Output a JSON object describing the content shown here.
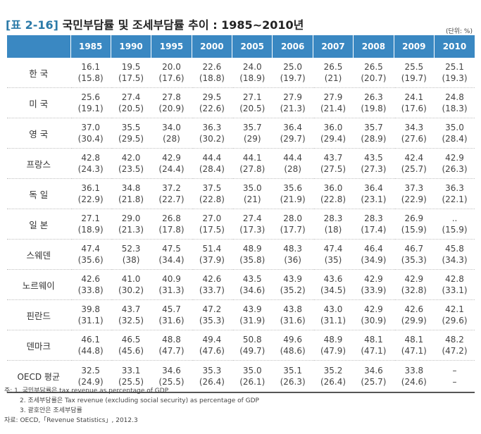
{
  "title": {
    "number": "[표 2-16]",
    "text": "국민부담률 및 조세부담률 추이 : 1985~2010년"
  },
  "unit": "(단위: %)",
  "table": {
    "headers": [
      "",
      "1985",
      "1990",
      "1995",
      "2000",
      "2005",
      "2006",
      "2007",
      "2008",
      "2009",
      "2010"
    ],
    "rows": [
      {
        "country": "한 국",
        "values": [
          [
            "16.1",
            "(15.8)"
          ],
          [
            "19.5",
            "(17.5)"
          ],
          [
            "20.0",
            "(17.6)"
          ],
          [
            "22.6",
            "(18.8)"
          ],
          [
            "24.0",
            "(18.9)"
          ],
          [
            "25.0",
            "(19.7)"
          ],
          [
            "26.5",
            "(21)"
          ],
          [
            "26.5",
            "(20.7)"
          ],
          [
            "25.5",
            "(19.7)"
          ],
          [
            "25.1",
            "(19.3)"
          ]
        ]
      },
      {
        "country": "미 국",
        "values": [
          [
            "25.6",
            "(19.1)"
          ],
          [
            "27.4",
            "(20.5)"
          ],
          [
            "27.8",
            "(20.9)"
          ],
          [
            "29.5",
            "(22.6)"
          ],
          [
            "27.1",
            "(20.5)"
          ],
          [
            "27.9",
            "(21.3)"
          ],
          [
            "27.9",
            "(21.4)"
          ],
          [
            "26.3",
            "(19.8)"
          ],
          [
            "24.1",
            "(17.6)"
          ],
          [
            "24.8",
            "(18.3)"
          ]
        ]
      },
      {
        "country": "영 국",
        "values": [
          [
            "37.0",
            "(30.4)"
          ],
          [
            "35.5",
            "(29.5)"
          ],
          [
            "34.0",
            "(28)"
          ],
          [
            "36.3",
            "(30.2)"
          ],
          [
            "35.7",
            "(29)"
          ],
          [
            "36.4",
            "(29.7)"
          ],
          [
            "36.0",
            "(29.4)"
          ],
          [
            "35.7",
            "(28.9)"
          ],
          [
            "34.3",
            "(27.6)"
          ],
          [
            "35.0",
            "(28.4)"
          ]
        ]
      },
      {
        "country": "프랑스",
        "values": [
          [
            "42.8",
            "(24.3)"
          ],
          [
            "42.0",
            "(23.5)"
          ],
          [
            "42.9",
            "(24.4)"
          ],
          [
            "44.4",
            "(28.4)"
          ],
          [
            "44.1",
            "(27.8)"
          ],
          [
            "44.4",
            "(28)"
          ],
          [
            "43.7",
            "(27.5)"
          ],
          [
            "43.5",
            "(27.3)"
          ],
          [
            "42.4",
            "(25.7)"
          ],
          [
            "42.9",
            "(26.3)"
          ]
        ]
      },
      {
        "country": "독 일",
        "values": [
          [
            "36.1",
            "(22.9)"
          ],
          [
            "34.8",
            "(21.8)"
          ],
          [
            "37.2",
            "(22.7)"
          ],
          [
            "37.5",
            "(22.8)"
          ],
          [
            "35.0",
            "(21)"
          ],
          [
            "35.6",
            "(21.9)"
          ],
          [
            "36.0",
            "(22.8)"
          ],
          [
            "36.4",
            "(23.1)"
          ],
          [
            "37.3",
            "(22.9)"
          ],
          [
            "36.3",
            "(22.1)"
          ]
        ]
      },
      {
        "country": "일 본",
        "values": [
          [
            "27.1",
            "(18.9)"
          ],
          [
            "29.0",
            "(21.3)"
          ],
          [
            "26.8",
            "(17.8)"
          ],
          [
            "27.0",
            "(17.5)"
          ],
          [
            "27.4",
            "(17.3)"
          ],
          [
            "28.0",
            "(17.7)"
          ],
          [
            "28.3",
            "(18)"
          ],
          [
            "28.3",
            "(17.4)"
          ],
          [
            "26.9",
            "(15.9)"
          ],
          [
            "..",
            "(15.9)"
          ]
        ]
      },
      {
        "country": "스웨덴",
        "values": [
          [
            "47.4",
            "(35.6)"
          ],
          [
            "52.3",
            "(38)"
          ],
          [
            "47.5",
            "(34.4)"
          ],
          [
            "51.4",
            "(37.9)"
          ],
          [
            "48.9",
            "(35.8)"
          ],
          [
            "48.3",
            "(36)"
          ],
          [
            "47.4",
            "(35)"
          ],
          [
            "46.4",
            "(34.9)"
          ],
          [
            "46.7",
            "(35.3)"
          ],
          [
            "45.8",
            "(34.3)"
          ]
        ]
      },
      {
        "country": "노르웨이",
        "values": [
          [
            "42.6",
            "(33.8)"
          ],
          [
            "41.0",
            "(30.2)"
          ],
          [
            "40.9",
            "(31.3)"
          ],
          [
            "42.6",
            "(33.7)"
          ],
          [
            "43.5",
            "(34.6)"
          ],
          [
            "43.9",
            "(35.2)"
          ],
          [
            "43.6",
            "(34.5)"
          ],
          [
            "42.9",
            "(33.9)"
          ],
          [
            "42.9",
            "(32.8)"
          ],
          [
            "42.8",
            "(33.1)"
          ]
        ]
      },
      {
        "country": "핀란드",
        "values": [
          [
            "39.8",
            "(31.1)"
          ],
          [
            "43.7",
            "(32.5)"
          ],
          [
            "45.7",
            "(31.6)"
          ],
          [
            "47.2",
            "(35.3)"
          ],
          [
            "43.9",
            "(31.9)"
          ],
          [
            "43.8",
            "(31.6)"
          ],
          [
            "43.0",
            "(31.1)"
          ],
          [
            "42.9",
            "(30.9)"
          ],
          [
            "42.6",
            "(29.9)"
          ],
          [
            "42.1",
            "(29.6)"
          ]
        ]
      },
      {
        "country": "덴마크",
        "values": [
          [
            "46.1",
            "(44.8)"
          ],
          [
            "46.5",
            "(45.6)"
          ],
          [
            "48.8",
            "(47.7)"
          ],
          [
            "49.4",
            "(47.6)"
          ],
          [
            "50.8",
            "(49.7)"
          ],
          [
            "49.6",
            "(48.6)"
          ],
          [
            "48.9",
            "(47.9)"
          ],
          [
            "48.1",
            "(47.1)"
          ],
          [
            "48.1",
            "(47.1)"
          ],
          [
            "48.2",
            "(47.2)"
          ]
        ]
      },
      {
        "country": "OECD 평균",
        "values": [
          [
            "32.5",
            "(24.9)"
          ],
          [
            "33.1",
            "(25.5)"
          ],
          [
            "34.6",
            "(25.5)"
          ],
          [
            "35.3",
            "(26.4)"
          ],
          [
            "35.0",
            "(26.1)"
          ],
          [
            "35.1",
            "(26.3)"
          ],
          [
            "35.2",
            "(26.4)"
          ],
          [
            "34.6",
            "(25.7)"
          ],
          [
            "33.8",
            "(24.6)"
          ],
          [
            "–",
            "–"
          ]
        ]
      }
    ]
  },
  "notes": {
    "line1": "주: 1. 국민부담률은 tax revenue as percentage of GDP",
    "line2": "2. 조세부담률은 Tax revenue (excluding social security) as percentage of GDP",
    "line3": "3. 괄호안은 조세부담률",
    "source": "자료: OECD,「Revenue Statistics」, 2012.3"
  }
}
